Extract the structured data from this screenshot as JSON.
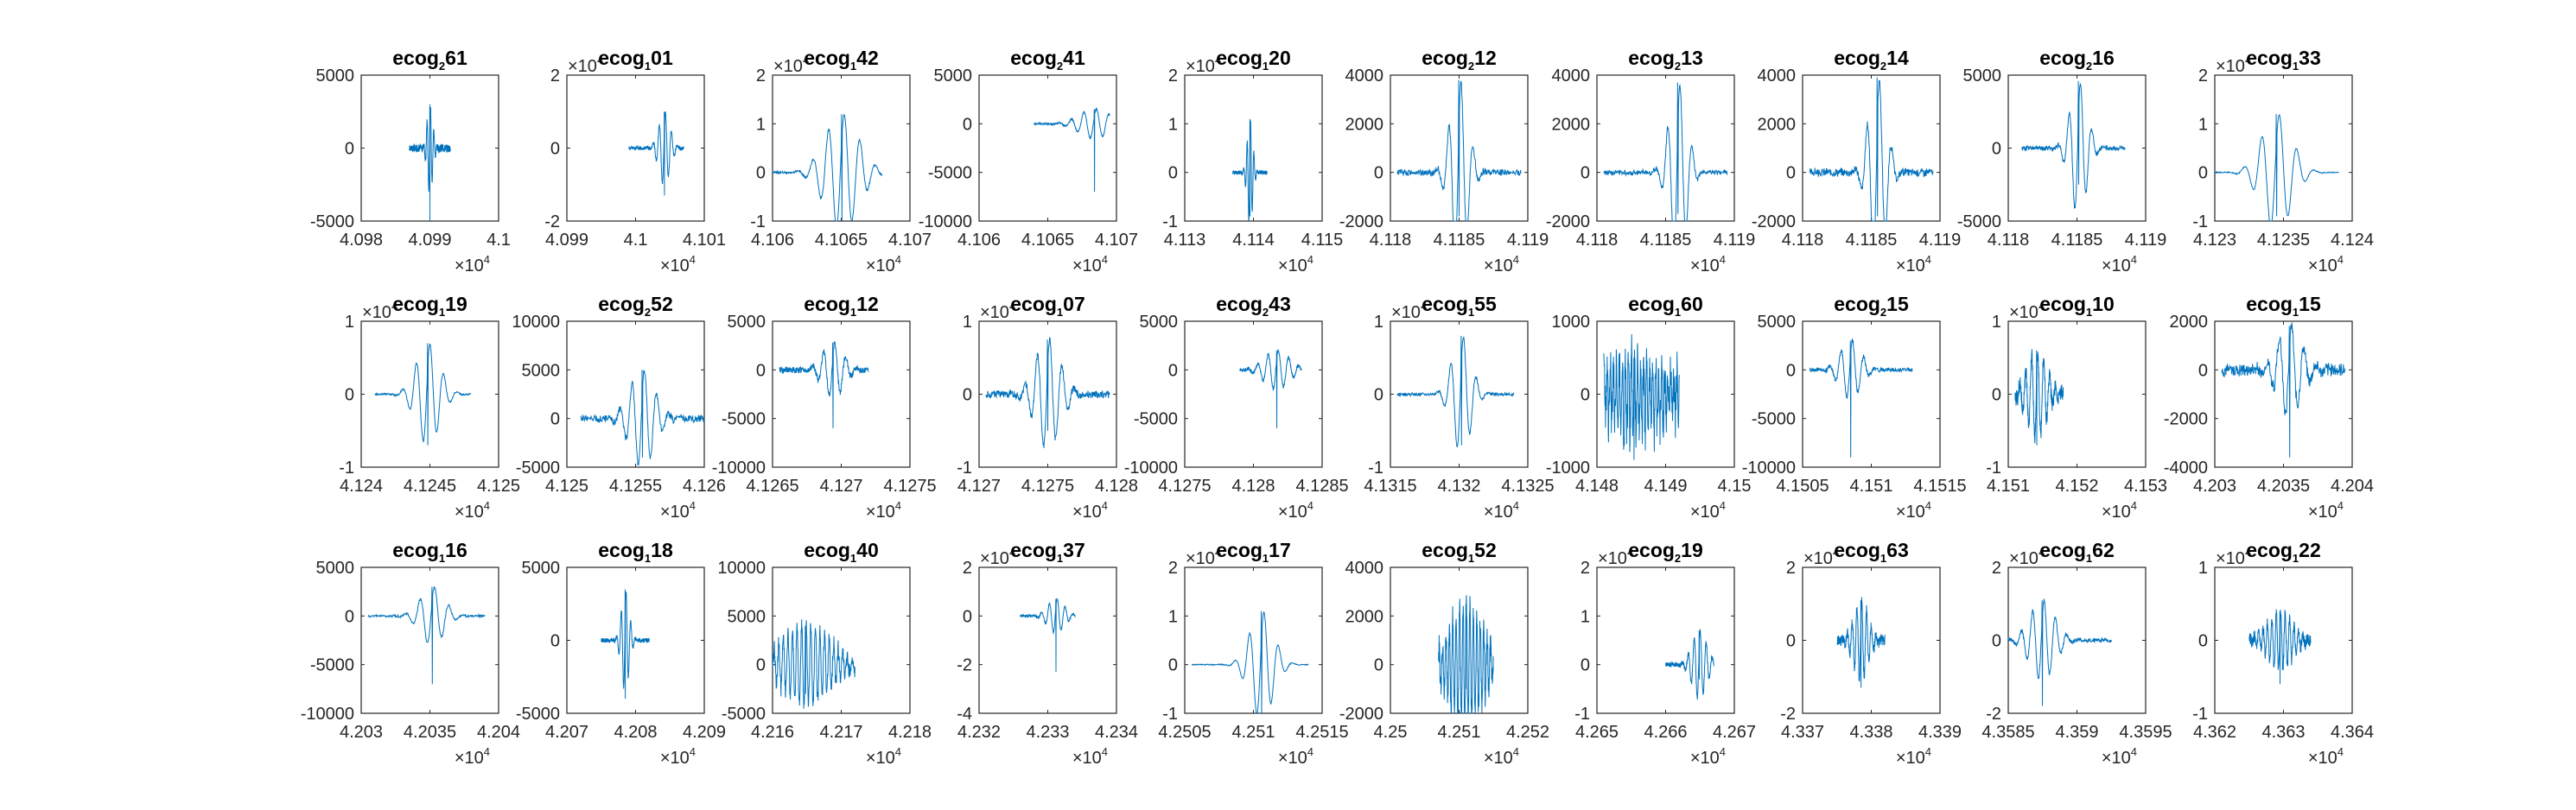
{
  "figure": {
    "background": "#ffffff",
    "axes_color": "#262626",
    "line_color": "#0072bd",
    "grid": false
  },
  "chart_data": [
    {
      "type": "line",
      "title_base": "ecog",
      "title_sub": "2",
      "title_suffix": "61",
      "xlim": [
        40980,
        41000
      ],
      "ylim": [
        -5000,
        5000
      ],
      "xticks": [
        "4.098",
        "4.099",
        "4.1"
      ],
      "yticks": [
        "-5000",
        "0",
        "5000"
      ],
      "xmult_exp": "4",
      "ymult_exp": "",
      "signal": {
        "x0": 40987,
        "x1": 40993,
        "center": 0.5,
        "amp": 3000,
        "bg": 450,
        "freq": 12,
        "decay": 0.07,
        "neg": -5000,
        "noise": 200
      }
    },
    {
      "type": "line",
      "title_base": "ecog",
      "title_sub": "1",
      "title_suffix": "01",
      "xlim": [
        40990,
        41010
      ],
      "ylim": [
        -2,
        2
      ],
      "xticks": [
        "4.099",
        "4.1",
        "4.101"
      ],
      "yticks": [
        "-2",
        "0",
        "2"
      ],
      "xmult_exp": "4",
      "ymult_exp": "4",
      "signal": {
        "x0": 40999,
        "x1": 41007,
        "center": 0.65,
        "amp": 1.0,
        "bg": 0.05,
        "freq": 9,
        "decay": 0.1,
        "neg": -1.3,
        "noise": 0.05
      }
    },
    {
      "type": "line",
      "title_base": "ecog",
      "title_sub": "1",
      "title_suffix": "42",
      "xlim": [
        41060,
        41070
      ],
      "ylim": [
        -1,
        2
      ],
      "xticks": [
        "4.106",
        "4.1065",
        "4.107"
      ],
      "yticks": [
        "-1",
        "0",
        "1",
        "2"
      ],
      "xmult_exp": "4",
      "ymult_exp": "4",
      "signal": {
        "x0": 41060,
        "x1": 41068,
        "center": 0.63,
        "amp": 1.2,
        "bg": 0.02,
        "freq": 7,
        "decay": 0.15,
        "neg": -1,
        "noise": 0.02
      }
    },
    {
      "type": "line",
      "title_base": "ecog",
      "title_sub": "2",
      "title_suffix": "41",
      "xlim": [
        41060,
        41070
      ],
      "ylim": [
        -10000,
        5000
      ],
      "xticks": [
        "4.106",
        "4.1065",
        "4.107"
      ],
      "yticks": [
        "-10000",
        "-5000",
        "0",
        "5000"
      ],
      "xmult_exp": "4",
      "ymult_exp": "",
      "signal": {
        "x0": 41064,
        "x1": 41069.5,
        "center": 0.8,
        "amp": 1500,
        "bg": 100,
        "freq": 6,
        "decay": 0.2,
        "neg": -7000,
        "noise": 80
      }
    },
    {
      "type": "line",
      "title_base": "ecog",
      "title_sub": "1",
      "title_suffix": "20",
      "xlim": [
        41130,
        41150
      ],
      "ylim": [
        -1,
        2
      ],
      "xticks": [
        "4.113",
        "4.114",
        "4.115"
      ],
      "yticks": [
        "-1",
        "0",
        "1",
        "2"
      ],
      "xmult_exp": "4",
      "ymult_exp": "4",
      "signal": {
        "x0": 41137,
        "x1": 41142,
        "center": 0.5,
        "amp": 1.1,
        "bg": 0.03,
        "freq": 10,
        "decay": 0.08,
        "neg": -0.9,
        "noise": 0.04
      }
    },
    {
      "type": "line",
      "title_base": "ecog",
      "title_sub": "2",
      "title_suffix": "12",
      "xlim": [
        41180,
        41190
      ],
      "ylim": [
        -2000,
        4000
      ],
      "xticks": [
        "4.118",
        "4.1185",
        "4.119"
      ],
      "yticks": [
        "-2000",
        "0",
        "2000",
        "4000"
      ],
      "xmult_exp": "4",
      "ymult_exp": "",
      "signal": {
        "x0": 41180.5,
        "x1": 41189.5,
        "center": 0.5,
        "amp": 3800,
        "bg": 120,
        "freq": 10,
        "decay": 0.07,
        "neg": -1800,
        "noise": 120
      }
    },
    {
      "type": "line",
      "title_base": "ecog",
      "title_sub": "2",
      "title_suffix": "13",
      "xlim": [
        41180,
        41190
      ],
      "ylim": [
        -2000,
        4000
      ],
      "xticks": [
        "4.118",
        "4.1185",
        "4.119"
      ],
      "yticks": [
        "-2000",
        "0",
        "2000",
        "4000"
      ],
      "xmult_exp": "4",
      "ymult_exp": "",
      "signal": {
        "x0": 41180.5,
        "x1": 41189.5,
        "center": 0.6,
        "amp": 3700,
        "bg": 100,
        "freq": 10,
        "decay": 0.07,
        "neg": -1700,
        "noise": 100
      }
    },
    {
      "type": "line",
      "title_base": "ecog",
      "title_sub": "2",
      "title_suffix": "14",
      "xlim": [
        41180,
        41190
      ],
      "ylim": [
        -2000,
        4000
      ],
      "xticks": [
        "4.118",
        "4.1185",
        "4.119"
      ],
      "yticks": [
        "-2000",
        "0",
        "2000",
        "4000"
      ],
      "xmult_exp": "4",
      "ymult_exp": "",
      "signal": {
        "x0": 41180.5,
        "x1": 41189.5,
        "center": 0.55,
        "amp": 3900,
        "bg": 150,
        "freq": 10,
        "decay": 0.07,
        "neg": -1800,
        "noise": 150
      }
    },
    {
      "type": "line",
      "title_base": "ecog",
      "title_sub": "2",
      "title_suffix": "16",
      "xlim": [
        41180,
        41190
      ],
      "ylim": [
        -5000,
        5000
      ],
      "xticks": [
        "4.118",
        "4.1185",
        "4.119"
      ],
      "yticks": [
        "-5000",
        "0",
        "5000"
      ],
      "xmult_exp": "4",
      "ymult_exp": "",
      "signal": {
        "x0": 41181,
        "x1": 41188.5,
        "center": 0.55,
        "amp": 4600,
        "bg": 150,
        "freq": 9,
        "decay": 0.08,
        "neg": -2500,
        "noise": 150
      }
    },
    {
      "type": "line",
      "title_base": "ecog",
      "title_sub": "1",
      "title_suffix": "33",
      "xlim": [
        41230,
        41240
      ],
      "ylim": [
        -1,
        2
      ],
      "xticks": [
        "4.123",
        "4.1235",
        "4.124"
      ],
      "yticks": [
        "-1",
        "0",
        "1",
        "2"
      ],
      "xmult_exp": "4",
      "ymult_exp": "4",
      "signal": {
        "x0": 41230,
        "x1": 41239,
        "center": 0.5,
        "amp": 1.2,
        "bg": 0.01,
        "freq": 7,
        "decay": 0.12,
        "neg": -0.9,
        "noise": 0.01
      }
    },
    {
      "type": "line",
      "title_base": "ecog",
      "title_sub": "1",
      "title_suffix": "19",
      "xlim": [
        41240,
        41250
      ],
      "ylim": [
        -1,
        1
      ],
      "xticks": [
        "4.124",
        "4.1245",
        "4.125"
      ],
      "yticks": [
        "-1",
        "0",
        "1"
      ],
      "xmult_exp": "4",
      "ymult_exp": "4",
      "signal": {
        "x0": 41241,
        "x1": 41248,
        "center": 0.55,
        "amp": 0.7,
        "bg": 0.01,
        "freq": 7,
        "decay": 0.12,
        "neg": -0.7,
        "noise": 0.01
      }
    },
    {
      "type": "line",
      "title_base": "ecog",
      "title_sub": "2",
      "title_suffix": "52",
      "xlim": [
        41250,
        41260
      ],
      "ylim": [
        -5000,
        10000
      ],
      "xticks": [
        "4.125",
        "4.1255",
        "4.126"
      ],
      "yticks": [
        "-5000",
        "0",
        "5000",
        "10000"
      ],
      "xmult_exp": "4",
      "ymult_exp": "",
      "signal": {
        "x0": 41251,
        "x1": 41260,
        "center": 0.5,
        "amp": 5000,
        "bg": 250,
        "freq": 10,
        "decay": 0.1,
        "neg": -4000,
        "noise": 350
      }
    },
    {
      "type": "line",
      "title_base": "ecog",
      "title_sub": "1",
      "title_suffix": "12",
      "xlim": [
        41265,
        41275
      ],
      "ylim": [
        -10000,
        5000
      ],
      "xticks": [
        "4.1265",
        "4.127",
        "4.1275"
      ],
      "yticks": [
        "-10000",
        "-5000",
        "0",
        "5000"
      ],
      "xmult_exp": "4",
      "ymult_exp": "",
      "signal": {
        "x0": 41265.5,
        "x1": 41272,
        "center": 0.6,
        "amp": 2800,
        "bg": 300,
        "freq": 8,
        "decay": 0.12,
        "neg": -6000,
        "noise": 300
      }
    },
    {
      "type": "line",
      "title_base": "ecog",
      "title_sub": "1",
      "title_suffix": "07",
      "xlim": [
        41270,
        41280
      ],
      "ylim": [
        -1,
        1
      ],
      "xticks": [
        "4.127",
        "4.1275",
        "4.128"
      ],
      "yticks": [
        "-1",
        "0",
        "1"
      ],
      "xmult_exp": "4",
      "ymult_exp": "4",
      "signal": {
        "x0": 41270.5,
        "x1": 41279.5,
        "center": 0.5,
        "amp": 0.75,
        "bg": 0.02,
        "freq": 10,
        "decay": 0.1,
        "neg": -0.5,
        "noise": 0.05
      }
    },
    {
      "type": "line",
      "title_base": "ecog",
      "title_sub": "2",
      "title_suffix": "43",
      "xlim": [
        41275,
        41285
      ],
      "ylim": [
        -10000,
        5000
      ],
      "xticks": [
        "4.1275",
        "4.128",
        "4.1285"
      ],
      "yticks": [
        "-10000",
        "-5000",
        "0",
        "5000"
      ],
      "xmult_exp": "4",
      "ymult_exp": "",
      "signal": {
        "x0": 41279,
        "x1": 41283.5,
        "center": 0.6,
        "amp": 2000,
        "bg": 200,
        "freq": 6,
        "decay": 0.2,
        "neg": -6000,
        "noise": 150
      }
    },
    {
      "type": "line",
      "title_base": "ecog",
      "title_sub": "1",
      "title_suffix": "55",
      "xlim": [
        41315,
        41325
      ],
      "ylim": [
        -1,
        1
      ],
      "xticks": [
        "4.1315",
        "4.132",
        "4.1325"
      ],
      "yticks": [
        "-1",
        "0",
        "1"
      ],
      "xmult_exp": "4",
      "ymult_exp": "4",
      "signal": {
        "x0": 41315.5,
        "x1": 41324,
        "center": 0.55,
        "amp": 0.8,
        "bg": 0.01,
        "freq": 9,
        "decay": 0.08,
        "neg": -0.7,
        "noise": 0.02
      }
    },
    {
      "type": "line",
      "title_base": "ecog",
      "title_sub": "1",
      "title_suffix": "60",
      "xlim": [
        41480,
        41500
      ],
      "ylim": [
        -1000,
        1000
      ],
      "xticks": [
        "4.148",
        "4.149",
        "4.15"
      ],
      "yticks": [
        "-1000",
        "0",
        "1000"
      ],
      "xmult_exp": "4",
      "ymult_exp": "",
      "signal": {
        "x0": 41481,
        "x1": 41492,
        "center": 0.4,
        "amp": 500,
        "bg": 450,
        "freq": 25,
        "decay": 0.5,
        "neg": -900,
        "noise": 300
      }
    },
    {
      "type": "line",
      "title_base": "ecog",
      "title_sub": "2",
      "title_suffix": "15",
      "xlim": [
        41505,
        41515
      ],
      "ylim": [
        -10000,
        5000
      ],
      "xticks": [
        "4.1505",
        "4.151",
        "4.1515"
      ],
      "yticks": [
        "-10000",
        "-5000",
        "0",
        "5000"
      ],
      "xmult_exp": "4",
      "ymult_exp": "",
      "signal": {
        "x0": 41505.5,
        "x1": 41513,
        "center": 0.4,
        "amp": 3000,
        "bg": 200,
        "freq": 9,
        "decay": 0.1,
        "neg": -9000,
        "noise": 200
      }
    },
    {
      "type": "line",
      "title_base": "ecog",
      "title_sub": "1",
      "title_suffix": "10",
      "xlim": [
        41510,
        41530
      ],
      "ylim": [
        -1,
        1
      ],
      "xticks": [
        "4.151",
        "4.152",
        "4.153"
      ],
      "yticks": [
        "-1",
        "0",
        "1"
      ],
      "xmult_exp": "4",
      "ymult_exp": "4",
      "signal": {
        "x0": 41511,
        "x1": 41518,
        "center": 0.45,
        "amp": 0.6,
        "bg": 0.1,
        "freq": 8,
        "decay": 0.2,
        "neg": -0.7,
        "noise": 0.1
      }
    },
    {
      "type": "line",
      "title_base": "ecog",
      "title_sub": "1",
      "title_suffix": "15",
      "xlim": [
        42030,
        42040
      ],
      "ylim": [
        -4000,
        2000
      ],
      "xticks": [
        "4.203",
        "4.2035",
        "4.204"
      ],
      "yticks": [
        "-4000",
        "-2000",
        "0",
        "2000"
      ],
      "xmult_exp": "4",
      "ymult_exp": "",
      "signal": {
        "x0": 42030.5,
        "x1": 42039.5,
        "center": 0.55,
        "amp": 1800,
        "bg": 250,
        "freq": 10,
        "decay": 0.1,
        "neg": -3600,
        "noise": 250
      }
    },
    {
      "type": "line",
      "title_base": "ecog",
      "title_sub": "1",
      "title_suffix": "16",
      "xlim": [
        42030,
        42040
      ],
      "ylim": [
        -10000,
        5000
      ],
      "xticks": [
        "4.203",
        "4.2035",
        "4.204"
      ],
      "yticks": [
        "-10000",
        "-5000",
        "0",
        "5000"
      ],
      "xmult_exp": "4",
      "ymult_exp": "",
      "signal": {
        "x0": 42030.5,
        "x1": 42039,
        "center": 0.55,
        "amp": 3000,
        "bg": 150,
        "freq": 8,
        "decay": 0.1,
        "neg": -7000,
        "noise": 100
      }
    },
    {
      "type": "line",
      "title_base": "ecog",
      "title_sub": "1",
      "title_suffix": "18",
      "xlim": [
        42070,
        42090
      ],
      "ylim": [
        -5000,
        5000
      ],
      "xticks": [
        "4.207",
        "4.208",
        "4.209"
      ],
      "yticks": [
        "-5000",
        "0",
        "5000"
      ],
      "xmult_exp": "4",
      "ymult_exp": "",
      "signal": {
        "x0": 42075,
        "x1": 42082,
        "center": 0.5,
        "amp": 3500,
        "bg": 100,
        "freq": 10,
        "decay": 0.08,
        "neg": -4000,
        "noise": 150
      }
    },
    {
      "type": "line",
      "title_base": "ecog",
      "title_sub": "1",
      "title_suffix": "40",
      "xlim": [
        42160,
        42180
      ],
      "ylim": [
        -5000,
        10000
      ],
      "xticks": [
        "4.216",
        "4.217",
        "4.218"
      ],
      "yticks": [
        "-5000",
        "0",
        "5000",
        "10000"
      ],
      "xmult_exp": "4",
      "ymult_exp": "",
      "signal": {
        "x0": 42160,
        "x1": 42172,
        "center": 0.4,
        "amp": 4000,
        "bg": 600,
        "freq": 18,
        "decay": 0.3,
        "neg": -3000,
        "noise": 800
      }
    },
    {
      "type": "line",
      "title_base": "ecog",
      "title_sub": "1",
      "title_suffix": "37",
      "xlim": [
        42320,
        42340
      ],
      "ylim": [
        -4,
        2
      ],
      "xticks": [
        "4.232",
        "4.233",
        "4.234"
      ],
      "yticks": [
        "-4",
        "-2",
        "0",
        "2"
      ],
      "xmult_exp": "4",
      "ymult_exp": "4",
      "signal": {
        "x0": 42326,
        "x1": 42334,
        "center": 0.65,
        "amp": 0.7,
        "bg": 0.05,
        "freq": 7,
        "decay": 0.15,
        "neg": -2.3,
        "noise": 0.05
      }
    },
    {
      "type": "line",
      "title_base": "ecog",
      "title_sub": "1",
      "title_suffix": "17",
      "xlim": [
        42505,
        42515
      ],
      "ylim": [
        -1,
        2
      ],
      "xticks": [
        "4.2505",
        "4.251",
        "4.2515"
      ],
      "yticks": [
        "-1",
        "0",
        "1",
        "2"
      ],
      "xmult_exp": "4",
      "ymult_exp": "4",
      "signal": {
        "x0": 42505.5,
        "x1": 42514,
        "center": 0.6,
        "amp": 1.1,
        "bg": 0.01,
        "freq": 8,
        "decay": 0.1,
        "neg": -1,
        "noise": 0.01
      }
    },
    {
      "type": "line",
      "title_base": "ecog",
      "title_sub": "1",
      "title_suffix": "52",
      "xlim": [
        42500,
        42520
      ],
      "ylim": [
        -2000,
        4000
      ],
      "xticks": [
        "4.25",
        "4.251",
        "4.252"
      ],
      "yticks": [
        "-2000",
        "0",
        "2000",
        "4000"
      ],
      "xmult_exp": "4",
      "ymult_exp": "",
      "signal": {
        "x0": 42507,
        "x1": 42515,
        "center": 0.5,
        "amp": 2500,
        "bg": 500,
        "freq": 16,
        "decay": 0.3,
        "neg": -1000,
        "noise": 500
      }
    },
    {
      "type": "line",
      "title_base": "ecog",
      "title_sub": "2",
      "title_suffix": "19",
      "xlim": [
        42650,
        42670
      ],
      "ylim": [
        -1,
        2
      ],
      "xticks": [
        "4.265",
        "4.266",
        "4.267"
      ],
      "yticks": [
        "-1",
        "0",
        "1",
        "2"
      ],
      "xmult_exp": "4",
      "ymult_exp": "4",
      "signal": {
        "x0": 42660,
        "x1": 42667,
        "center": 0.7,
        "amp": 0.7,
        "bg": 0.02,
        "freq": 8,
        "decay": 0.15,
        "neg": -0.3,
        "noise": 0.05
      }
    },
    {
      "type": "line",
      "title_base": "ecog",
      "title_sub": "1",
      "title_suffix": "63",
      "xlim": [
        43370,
        43390
      ],
      "ylim": [
        -2,
        2
      ],
      "xticks": [
        "4.337",
        "4.338",
        "4.339"
      ],
      "yticks": [
        "-2",
        "0",
        "2"
      ],
      "xmult_exp": "4",
      "ymult_exp": "4",
      "signal": {
        "x0": 43375,
        "x1": 43382,
        "center": 0.5,
        "amp": 1.1,
        "bg": 0.1,
        "freq": 10,
        "decay": 0.15,
        "neg": -1.3,
        "noise": 0.15
      }
    },
    {
      "type": "line",
      "title_base": "ecog",
      "title_sub": "1",
      "title_suffix": "62",
      "xlim": [
        43585,
        43595
      ],
      "ylim": [
        -2,
        2
      ],
      "xticks": [
        "4.3585",
        "4.359",
        "4.3595"
      ],
      "yticks": [
        "-2",
        "0",
        "2"
      ],
      "xmult_exp": "4",
      "ymult_exp": "4",
      "signal": {
        "x0": 43585,
        "x1": 43592.5,
        "center": 0.33,
        "amp": 1.1,
        "bg": 0.02,
        "freq": 9,
        "decay": 0.12,
        "neg": -1.8,
        "noise": 0.05
      }
    },
    {
      "type": "line",
      "title_base": "ecog",
      "title_sub": "1",
      "title_suffix": "22",
      "xlim": [
        43620,
        43640
      ],
      "ylim": [
        -1,
        1
      ],
      "xticks": [
        "4.362",
        "4.363",
        "4.364"
      ],
      "yticks": [
        "-1",
        "0",
        "1"
      ],
      "xmult_exp": "4",
      "ymult_exp": "4",
      "signal": {
        "x0": 43625,
        "x1": 43634,
        "center": 0.5,
        "amp": 0.4,
        "bg": 0.05,
        "freq": 14,
        "decay": 0.2,
        "neg": -0.6,
        "noise": 0.08
      }
    }
  ]
}
